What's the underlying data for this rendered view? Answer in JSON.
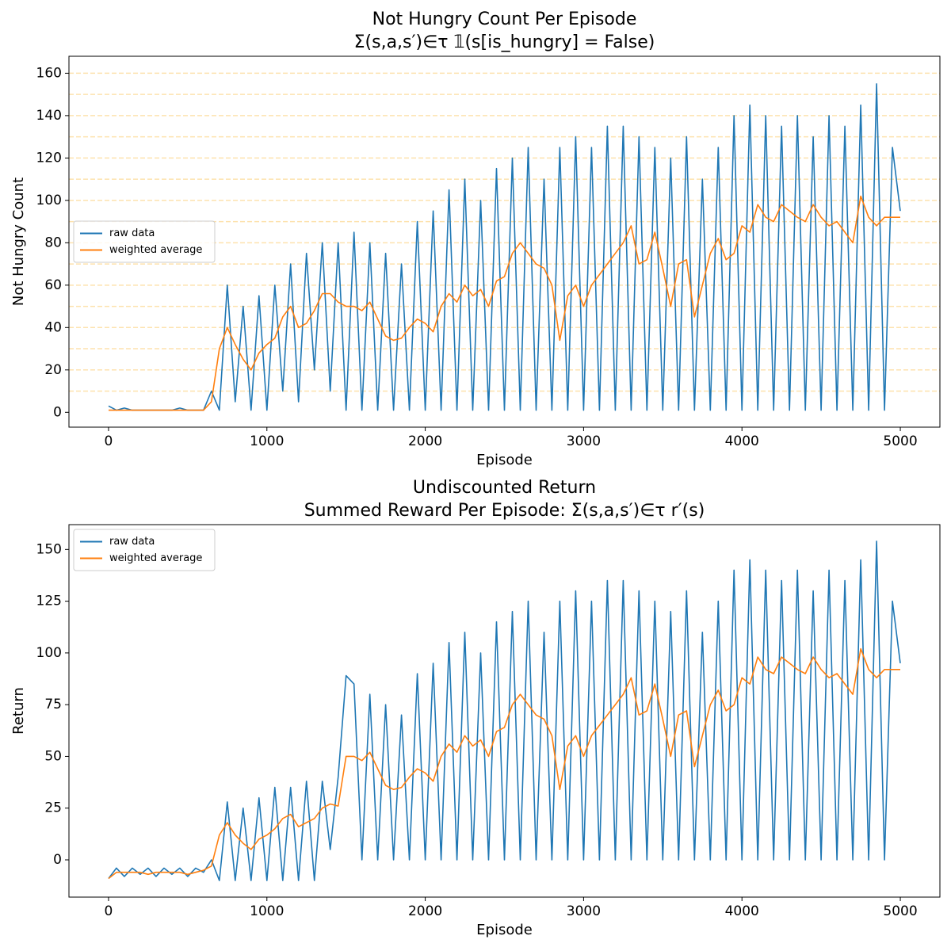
{
  "chart_data": [
    {
      "type": "line",
      "title": "Not Hungry Count Per Episode",
      "subtitle": "Σ(s,a,s′)∈τ 𝟙(s[is_hungry] = False)",
      "xlabel": "Episode",
      "ylabel": "Not Hungry Count",
      "x": [
        0,
        50,
        100,
        150,
        200,
        250,
        300,
        350,
        400,
        450,
        500,
        550,
        600,
        650,
        700,
        750,
        800,
        850,
        900,
        950,
        1000,
        1050,
        1100,
        1150,
        1200,
        1250,
        1300,
        1350,
        1400,
        1450,
        1500,
        1550,
        1600,
        1650,
        1700,
        1750,
        1800,
        1850,
        1900,
        1950,
        2000,
        2050,
        2100,
        2150,
        2200,
        2250,
        2300,
        2350,
        2400,
        2450,
        2500,
        2550,
        2600,
        2650,
        2700,
        2750,
        2800,
        2850,
        2900,
        2950,
        3000,
        3050,
        3100,
        3150,
        3200,
        3250,
        3300,
        3350,
        3400,
        3450,
        3500,
        3550,
        3600,
        3650,
        3700,
        3750,
        3800,
        3850,
        3900,
        3950,
        4000,
        4050,
        4100,
        4150,
        4200,
        4250,
        4300,
        4350,
        4400,
        4450,
        4500,
        4550,
        4600,
        4650,
        4700,
        4750,
        4800,
        4850,
        4900,
        4950,
        5000
      ],
      "series": [
        {
          "name": "raw data",
          "color": "#1f77b4",
          "values": [
            3,
            1,
            2,
            1,
            1,
            1,
            1,
            1,
            1,
            2,
            1,
            1,
            1,
            10,
            1,
            60,
            5,
            50,
            1,
            55,
            1,
            60,
            10,
            70,
            5,
            75,
            20,
            80,
            10,
            80,
            1,
            85,
            1,
            80,
            1,
            75,
            1,
            70,
            1,
            90,
            1,
            95,
            1,
            105,
            1,
            110,
            1,
            100,
            1,
            115,
            1,
            120,
            1,
            125,
            1,
            110,
            1,
            125,
            1,
            130,
            1,
            125,
            1,
            135,
            1,
            135,
            1,
            130,
            1,
            125,
            1,
            120,
            1,
            130,
            1,
            110,
            1,
            125,
            1,
            140,
            1,
            145,
            1,
            140,
            1,
            135,
            1,
            140,
            1,
            130,
            1,
            140,
            1,
            135,
            1,
            145,
            1,
            155,
            1,
            125,
            95
          ]
        },
        {
          "name": "weighted average",
          "color": "#ff7f0e",
          "values": [
            1,
            1,
            1,
            1,
            1,
            1,
            1,
            1,
            1,
            1,
            1,
            1,
            1,
            5,
            30,
            40,
            32,
            25,
            20,
            28,
            32,
            35,
            45,
            50,
            40,
            42,
            48,
            56,
            56,
            52,
            50,
            50,
            48,
            52,
            44,
            36,
            34,
            35,
            40,
            44,
            42,
            38,
            50,
            56,
            52,
            60,
            55,
            58,
            50,
            62,
            64,
            75,
            80,
            75,
            70,
            68,
            60,
            34,
            55,
            60,
            50,
            60,
            65,
            70,
            75,
            80,
            88,
            70,
            72,
            85,
            68,
            50,
            70,
            72,
            45,
            60,
            75,
            82,
            72,
            75,
            88,
            85,
            98,
            92,
            90,
            98,
            95,
            92,
            90,
            98,
            92,
            88,
            90,
            85,
            80,
            102,
            92,
            88,
            92,
            92,
            92
          ]
        }
      ],
      "xlim": [
        -250,
        5250
      ],
      "xticks": [
        0,
        1000,
        2000,
        3000,
        4000,
        5000
      ],
      "ylim": [
        -7,
        168
      ],
      "yticks": [
        0,
        20,
        40,
        60,
        80,
        100,
        120,
        140,
        160
      ],
      "hlines": [
        10,
        20,
        30,
        40,
        50,
        60,
        70,
        80,
        90,
        100,
        110,
        120,
        130,
        140,
        150,
        160
      ],
      "hline_color": "#fde2ae",
      "legend": "center left"
    },
    {
      "type": "line",
      "title": "Undiscounted Return",
      "subtitle": "Summed Reward Per Episode: Σ(s,a,s′)∈τ r′(s)",
      "xlabel": "Episode",
      "ylabel": "Return",
      "x": [
        0,
        50,
        100,
        150,
        200,
        250,
        300,
        350,
        400,
        450,
        500,
        550,
        600,
        650,
        700,
        750,
        800,
        850,
        900,
        950,
        1000,
        1050,
        1100,
        1150,
        1200,
        1250,
        1300,
        1350,
        1400,
        1450,
        1500,
        1550,
        1600,
        1650,
        1700,
        1750,
        1800,
        1850,
        1900,
        1950,
        2000,
        2050,
        2100,
        2150,
        2200,
        2250,
        2300,
        2350,
        2400,
        2450,
        2500,
        2550,
        2600,
        2650,
        2700,
        2750,
        2800,
        2850,
        2900,
        2950,
        3000,
        3050,
        3100,
        3150,
        3200,
        3250,
        3300,
        3350,
        3400,
        3450,
        3500,
        3550,
        3600,
        3650,
        3700,
        3750,
        3800,
        3850,
        3900,
        3950,
        4000,
        4050,
        4100,
        4150,
        4200,
        4250,
        4300,
        4350,
        4400,
        4450,
        4500,
        4550,
        4600,
        4650,
        4700,
        4750,
        4800,
        4850,
        4900,
        4950,
        5000
      ],
      "series": [
        {
          "name": "raw data",
          "color": "#1f77b4",
          "values": [
            -9,
            -4,
            -8,
            -4,
            -7,
            -4,
            -8,
            -4,
            -7,
            -4,
            -8,
            -4,
            -6,
            0,
            -10,
            28,
            -10,
            25,
            -10,
            30,
            -10,
            35,
            -10,
            35,
            -10,
            38,
            -10,
            38,
            5,
            40,
            89,
            85,
            0,
            80,
            0,
            75,
            0,
            70,
            0,
            90,
            0,
            95,
            0,
            105,
            0,
            110,
            0,
            100,
            0,
            115,
            0,
            120,
            0,
            125,
            0,
            110,
            0,
            125,
            0,
            130,
            0,
            125,
            0,
            135,
            0,
            135,
            0,
            130,
            0,
            125,
            0,
            120,
            0,
            130,
            0,
            110,
            0,
            125,
            0,
            140,
            0,
            145,
            0,
            140,
            0,
            135,
            0,
            140,
            0,
            130,
            0,
            140,
            0,
            135,
            0,
            145,
            0,
            154,
            0,
            125,
            95
          ]
        },
        {
          "name": "weighted average",
          "color": "#ff7f0e",
          "values": [
            -9,
            -6,
            -6,
            -6,
            -6,
            -7,
            -6,
            -6,
            -6,
            -6,
            -7,
            -6,
            -5,
            -3,
            12,
            18,
            12,
            8,
            5,
            10,
            12,
            15,
            20,
            22,
            16,
            18,
            20,
            25,
            27,
            26,
            50,
            50,
            48,
            52,
            44,
            36,
            34,
            35,
            40,
            44,
            42,
            38,
            50,
            56,
            52,
            60,
            55,
            58,
            50,
            62,
            64,
            75,
            80,
            75,
            70,
            68,
            60,
            34,
            55,
            60,
            50,
            60,
            65,
            70,
            75,
            80,
            88,
            70,
            72,
            85,
            68,
            50,
            70,
            72,
            45,
            60,
            75,
            82,
            72,
            75,
            88,
            85,
            98,
            92,
            90,
            98,
            95,
            92,
            90,
            98,
            92,
            88,
            90,
            85,
            80,
            102,
            92,
            88,
            92,
            92,
            92
          ]
        }
      ],
      "xlim": [
        -250,
        5250
      ],
      "xticks": [
        0,
        1000,
        2000,
        3000,
        4000,
        5000
      ],
      "ylim": [
        -18,
        162
      ],
      "yticks": [
        0,
        25,
        50,
        75,
        100,
        125,
        150
      ],
      "legend": "upper left"
    }
  ]
}
